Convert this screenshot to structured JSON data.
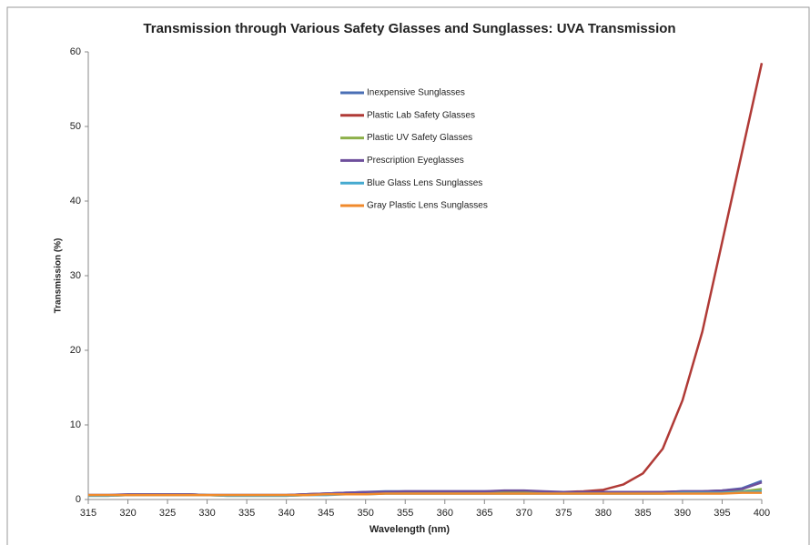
{
  "chart_data": {
    "type": "line",
    "title": "Transmission through Various Safety Glasses and Sunglasses: UVA Transmission",
    "xlabel": "Wavelength (nm)",
    "ylabel": "Transmission (%)",
    "x": [
      315,
      317.5,
      320,
      322.5,
      325,
      327.5,
      330,
      332.5,
      335,
      337.5,
      340,
      342.5,
      345,
      347.5,
      350,
      352.5,
      355,
      357.5,
      360,
      362.5,
      365,
      367.5,
      370,
      372.5,
      375,
      377.5,
      380,
      382.5,
      385,
      387.5,
      390,
      392.5,
      395,
      397.5,
      400
    ],
    "series": [
      {
        "name": "Inexpensive Sunglasses",
        "color": "#4a6fb5",
        "values": [
          0.6,
          0.6,
          0.6,
          0.7,
          0.7,
          0.7,
          0.6,
          0.6,
          0.6,
          0.6,
          0.6,
          0.7,
          0.8,
          0.9,
          1.0,
          1.1,
          1.1,
          1.1,
          1.1,
          1.1,
          1.1,
          1.1,
          1.1,
          1.0,
          1.0,
          1.0,
          1.0,
          1.0,
          1.0,
          1.0,
          1.1,
          1.1,
          1.2,
          1.5,
          2.5
        ]
      },
      {
        "name": "Plastic Lab Safety Glasses",
        "color": "#b03a36",
        "values": [
          0.6,
          0.6,
          0.6,
          0.7,
          0.7,
          0.7,
          0.6,
          0.6,
          0.6,
          0.6,
          0.6,
          0.7,
          0.8,
          0.9,
          0.9,
          1.0,
          1.0,
          1.0,
          1.0,
          1.0,
          1.0,
          1.0,
          1.0,
          1.0,
          1.0,
          1.1,
          1.3,
          2.0,
          3.5,
          6.8,
          13.3,
          22.5,
          34.5,
          46.5,
          58.5
        ]
      },
      {
        "name": "Plastic UV Safety Glasses",
        "color": "#8db04a",
        "values": [
          0.5,
          0.5,
          0.6,
          0.6,
          0.6,
          0.6,
          0.6,
          0.5,
          0.5,
          0.5,
          0.5,
          0.6,
          0.7,
          0.8,
          0.8,
          0.9,
          0.9,
          0.9,
          0.9,
          0.9,
          0.9,
          0.9,
          0.9,
          0.9,
          0.9,
          0.9,
          0.9,
          0.9,
          0.9,
          0.9,
          1.0,
          1.0,
          1.0,
          1.1,
          1.4
        ]
      },
      {
        "name": "Prescription Eyeglasses",
        "color": "#6e4f9c",
        "values": [
          0.6,
          0.6,
          0.7,
          0.7,
          0.7,
          0.7,
          0.6,
          0.6,
          0.6,
          0.6,
          0.6,
          0.7,
          0.8,
          0.9,
          1.0,
          1.0,
          1.1,
          1.1,
          1.1,
          1.1,
          1.1,
          1.2,
          1.2,
          1.1,
          1.0,
          1.0,
          1.0,
          1.0,
          1.0,
          1.0,
          1.1,
          1.1,
          1.2,
          1.4,
          2.3
        ]
      },
      {
        "name": "Blue Glass Lens Sunglasses",
        "color": "#46aad0",
        "values": [
          0.5,
          0.5,
          0.6,
          0.6,
          0.6,
          0.6,
          0.6,
          0.5,
          0.5,
          0.5,
          0.5,
          0.6,
          0.6,
          0.7,
          0.7,
          0.8,
          0.8,
          0.8,
          0.8,
          0.8,
          0.8,
          0.8,
          0.8,
          0.8,
          0.8,
          0.8,
          0.8,
          0.8,
          0.8,
          0.8,
          0.9,
          0.9,
          0.9,
          1.0,
          1.1
        ]
      },
      {
        "name": "Gray Plastic Lens Sunglasses",
        "color": "#f08a2c",
        "values": [
          0.6,
          0.6,
          0.6,
          0.6,
          0.6,
          0.6,
          0.6,
          0.6,
          0.6,
          0.6,
          0.6,
          0.6,
          0.7,
          0.7,
          0.7,
          0.8,
          0.8,
          0.8,
          0.8,
          0.8,
          0.8,
          0.8,
          0.8,
          0.8,
          0.8,
          0.8,
          0.8,
          0.8,
          0.8,
          0.8,
          0.8,
          0.8,
          0.8,
          0.9,
          0.9
        ]
      }
    ],
    "xlim": [
      315,
      400
    ],
    "xticks": [
      315,
      320,
      325,
      330,
      335,
      340,
      345,
      350,
      355,
      360,
      365,
      370,
      375,
      380,
      385,
      390,
      395,
      400
    ],
    "ylim": [
      0,
      60
    ],
    "yticks": [
      0,
      10,
      20,
      30,
      40,
      50,
      60
    ],
    "grid": false
  }
}
